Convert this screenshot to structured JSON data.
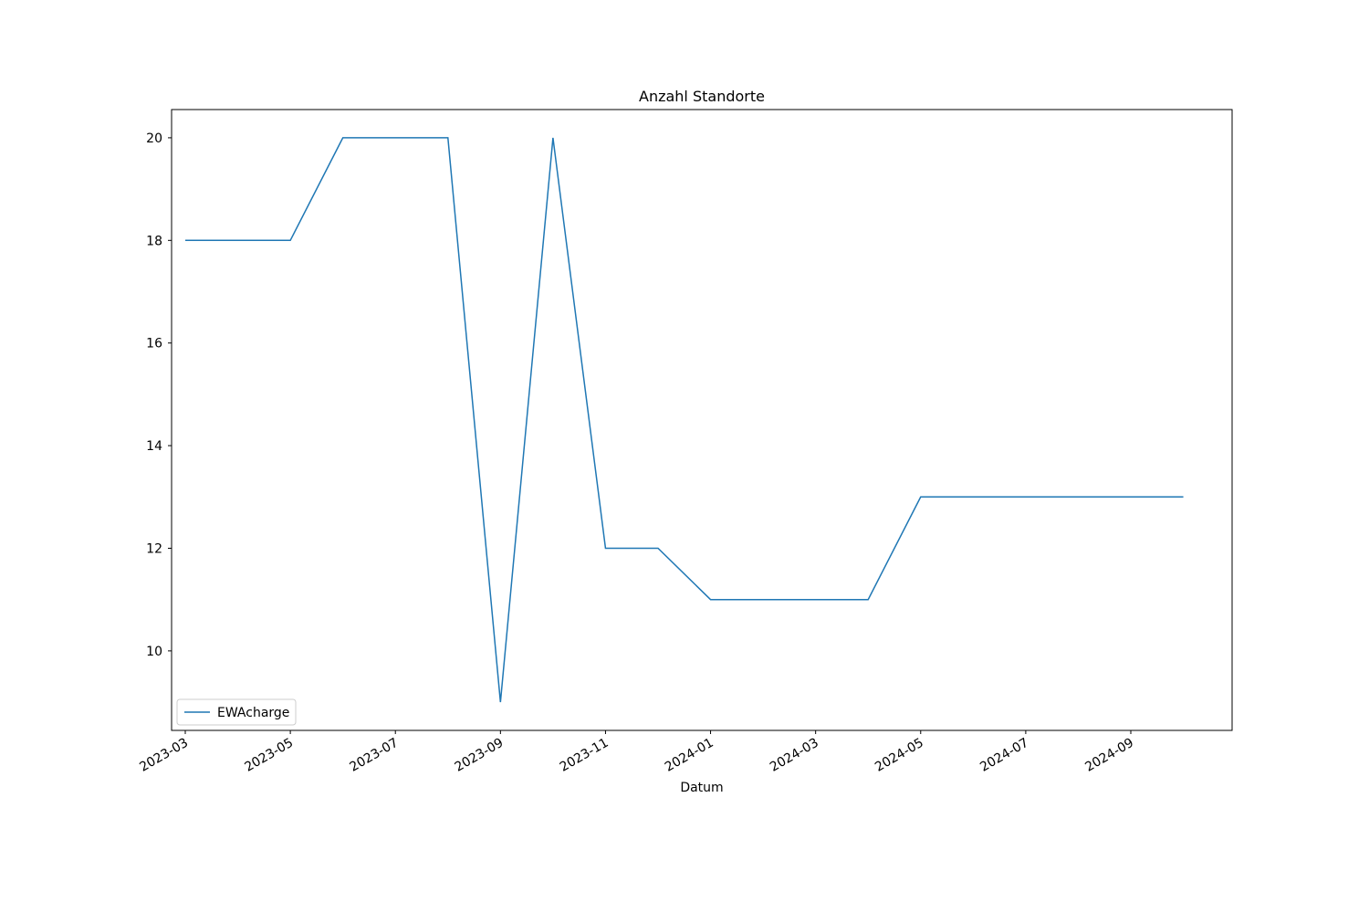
{
  "chart_data": {
    "type": "line",
    "title": "Anzahl Standorte",
    "xlabel": "Datum",
    "x": [
      "2023-03",
      "2023-04",
      "2023-05",
      "2023-06",
      "2023-07",
      "2023-08",
      "2023-09",
      "2023-10",
      "2023-11",
      "2023-12",
      "2024-01",
      "2024-02",
      "2024-03",
      "2024-04",
      "2024-05",
      "2024-06",
      "2024-07",
      "2024-08",
      "2024-09",
      "2024-10"
    ],
    "series": [
      {
        "name": "EWAcharge",
        "color": "#1f77b4",
        "values": [
          18,
          18,
          18,
          20,
          20,
          20,
          9,
          20,
          12,
          12,
          11,
          11,
          11,
          11,
          13,
          13,
          13,
          13,
          13,
          13
        ]
      }
    ],
    "xticks": [
      "2023-03",
      "2023-05",
      "2023-07",
      "2023-09",
      "2023-11",
      "2024-01",
      "2024-03",
      "2024-05",
      "2024-07",
      "2024-09"
    ],
    "ylim": [
      8.45,
      20.55
    ],
    "yticks": [
      10,
      12,
      14,
      16,
      18,
      20
    ],
    "grid": false,
    "legend": "lower left"
  }
}
